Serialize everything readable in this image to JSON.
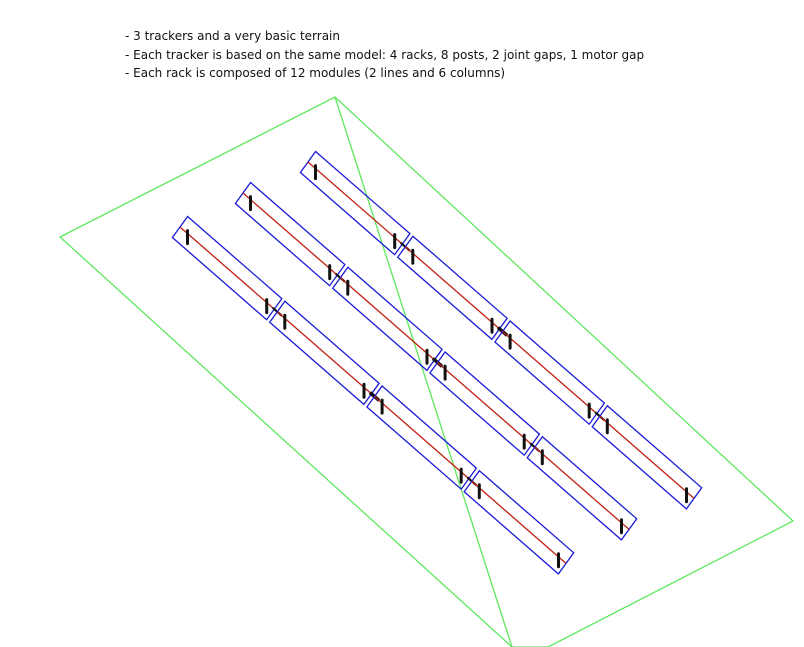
{
  "notes": [
    "- 3 trackers and a very basic terrain",
    "- Each tracker is based on the same model: 4 racks, 8 posts, 2 joint gaps, 1 motor gap",
    "- Each rack is composed of 12 modules (2 lines and 6 columns)"
  ],
  "colors": {
    "terrain": "#5ee85e",
    "rack_outline": "#1a1ad6",
    "torque_tube": "#c02010",
    "post": "#111111",
    "text": "#111111"
  },
  "scene": {
    "trackers": 3,
    "racks_per_tracker": 4,
    "posts_per_tracker": 8
  }
}
